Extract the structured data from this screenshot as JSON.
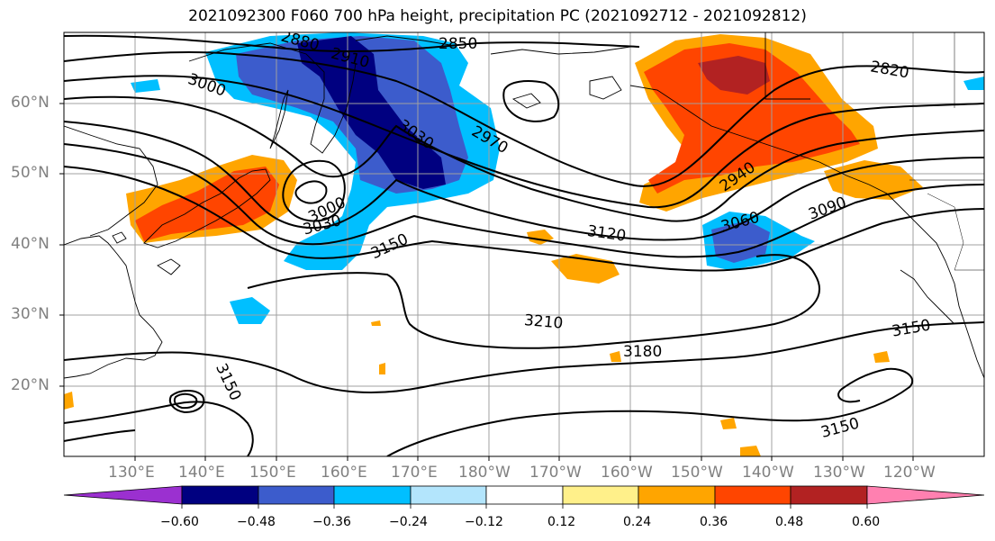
{
  "title": "2021092300 F060 700 hPa height, precipitation PC (2021092712 - 2021092812)",
  "latitude_labels": [
    "60°N",
    "50°N",
    "40°N",
    "30°N",
    "20°N"
  ],
  "longitude_labels": [
    "130°E",
    "140°E",
    "150°E",
    "160°E",
    "170°E",
    "180°W",
    "170°W",
    "160°W",
    "150°W",
    "140°W",
    "130°W",
    "120°W"
  ],
  "contour_labels": [
    "2880",
    "2910",
    "2850",
    "3000",
    "3030",
    "2970",
    "3000",
    "3030",
    "3150",
    "3120",
    "2940",
    "3060",
    "3090",
    "2820",
    "3210",
    "3180",
    "3150",
    "3150",
    "3150"
  ],
  "colorbar": {
    "ticks": [
      "−0.60",
      "−0.48",
      "−0.36",
      "−0.24",
      "−0.12",
      "0.12",
      "0.24",
      "0.36",
      "0.48",
      "0.60"
    ],
    "colors": [
      "#9b30d0",
      "#000080",
      "#3c5ccc",
      "#00bfff",
      "#b3e5fc",
      "#ffffff",
      "#fff08a",
      "#ffa500",
      "#ff4500",
      "#b22222",
      "#ff80b0"
    ]
  }
}
